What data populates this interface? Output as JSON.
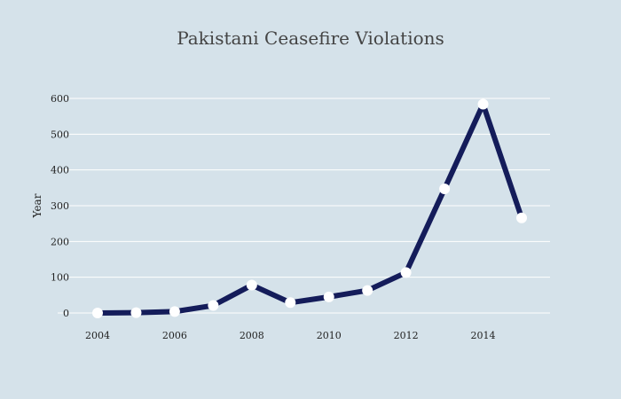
{
  "chart_data": {
    "type": "line",
    "title": "Pakistani Ceasefire Violations",
    "xlabel": "",
    "ylabel": "Year",
    "x": [
      2004,
      2005,
      2006,
      2007,
      2008,
      2009,
      2010,
      2011,
      2012,
      2013,
      2014,
      2015
    ],
    "values": [
      0,
      1,
      4,
      21,
      78,
      29,
      45,
      63,
      113,
      347,
      584,
      266
    ],
    "xlim": [
      2004,
      2015
    ],
    "ylim": [
      0,
      600
    ],
    "xticks": [
      "2004",
      "2006",
      "2008",
      "2010",
      "2012",
      "2014"
    ],
    "yticks": [
      "0",
      "100",
      "200",
      "300",
      "400",
      "500",
      "600"
    ],
    "grid": true,
    "legend": "none",
    "colors": {
      "line": "#141c5a",
      "marker": "#ffffff",
      "background": "#d5e2ea",
      "grid": "#ffffff"
    }
  }
}
